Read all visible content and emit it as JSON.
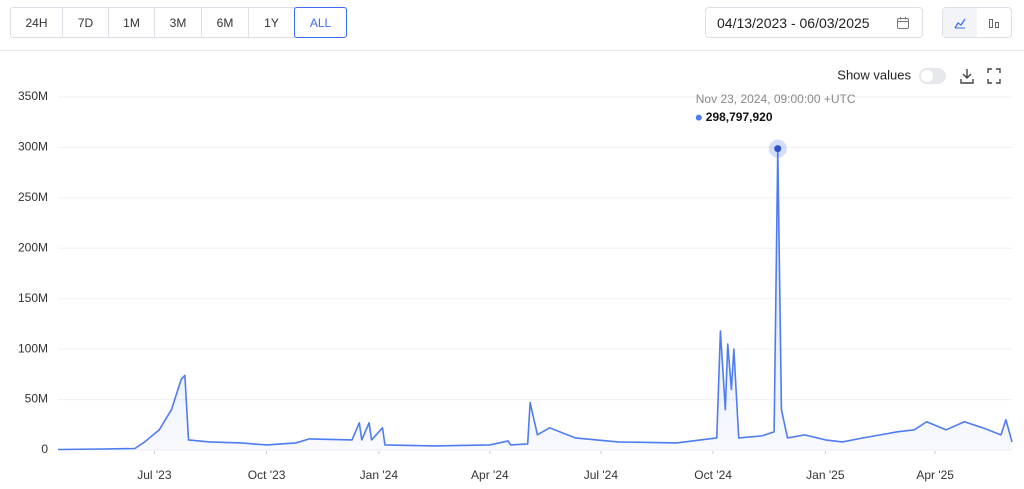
{
  "toolbar": {
    "ranges": [
      "24H",
      "7D",
      "1M",
      "3M",
      "6M",
      "1Y",
      "ALL"
    ],
    "selected": "ALL",
    "date_range": "04/13/2023 - 06/03/2025",
    "show_values": "Show values"
  },
  "chart_data": {
    "type": "line",
    "x": [
      "2023-04-13",
      "2023-05-20",
      "2023-06-15",
      "2023-06-23",
      "2023-07-05",
      "2023-07-15",
      "2023-07-23",
      "2023-07-26",
      "2023-07-29",
      "2023-08-15",
      "2023-09-10",
      "2023-10-01",
      "2023-10-25",
      "2023-11-05",
      "2023-12-10",
      "2023-12-16",
      "2023-12-18",
      "2023-12-24",
      "2023-12-26",
      "2024-01-04",
      "2024-01-06",
      "2024-02-15",
      "2024-04-01",
      "2024-04-16",
      "2024-04-18",
      "2024-05-02",
      "2024-05-04",
      "2024-05-10",
      "2024-05-20",
      "2024-06-10",
      "2024-07-15",
      "2024-09-01",
      "2024-10-04",
      "2024-10-07",
      "2024-10-11",
      "2024-10-13",
      "2024-10-16",
      "2024-10-18",
      "2024-10-22",
      "2024-11-10",
      "2024-11-20",
      "2024-11-23",
      "2024-11-26",
      "2024-12-01",
      "2024-12-15",
      "2025-01-01",
      "2025-01-15",
      "2025-02-01",
      "2025-02-15",
      "2025-03-01",
      "2025-03-15",
      "2025-03-25",
      "2025-04-10",
      "2025-04-25",
      "2025-05-10",
      "2025-05-25",
      "2025-05-29",
      "2025-06-03"
    ],
    "series": [
      {
        "color": "#4f7cf0",
        "values": [
          500000,
          1000000,
          1500000,
          8000000,
          20000000,
          40000000,
          70000000,
          74000000,
          10000000,
          8000000,
          7000000,
          5000000,
          7000000,
          11000000,
          10000000,
          27000000,
          10000000,
          27000000,
          10000000,
          22000000,
          5000000,
          4000000,
          5000000,
          9000000,
          5000000,
          6000000,
          47000000,
          15000000,
          22000000,
          12000000,
          8000000,
          7000000,
          12000000,
          118000000,
          40000000,
          105000000,
          60000000,
          100000000,
          12000000,
          14000000,
          18000000,
          298797920,
          40000000,
          12000000,
          15000000,
          10000000,
          8000000,
          12000000,
          15000000,
          18000000,
          20000000,
          28000000,
          20000000,
          28000000,
          22000000,
          15000000,
          30000000,
          8000000
        ],
        "value_labels": [
          null,
          null,
          null,
          null,
          null,
          null,
          null,
          null,
          null,
          null,
          null,
          null,
          null,
          null,
          null,
          null,
          null,
          null,
          null,
          null,
          null,
          null,
          null,
          null,
          null,
          null,
          null,
          null,
          null,
          null,
          null,
          null,
          null,
          null,
          null,
          null,
          null,
          null,
          null,
          null,
          null,
          "298,797,920",
          null,
          null,
          null,
          null,
          null,
          null,
          null,
          null,
          null,
          null,
          null,
          null,
          null,
          null,
          null,
          null
        ]
      }
    ],
    "annotation": "Nov 23, 2024, 09:00:00 +UTC",
    "xlim": [
      "2023-04-13",
      "2025-06-03"
    ],
    "xticks": [
      {
        "value": "2023-07-01",
        "label": "Jul '23"
      },
      {
        "value": "2023-10-01",
        "label": "Oct '23"
      },
      {
        "value": "2024-01-01",
        "label": "Jan '24"
      },
      {
        "value": "2024-04-01",
        "label": "Apr '24"
      },
      {
        "value": "2024-07-01",
        "label": "Jul '24"
      },
      {
        "value": "2024-10-01",
        "label": "Oct '24"
      },
      {
        "value": "2025-01-01",
        "label": "Jan '25"
      },
      {
        "value": "2025-04-01",
        "label": "Apr '25"
      }
    ],
    "ylim": [
      0,
      350000000
    ],
    "yticks": [
      0,
      {
        "value": 50000000,
        "label": "50M"
      },
      {
        "value": 100000000,
        "label": "100M"
      },
      {
        "value": 150000000,
        "label": "150M"
      },
      {
        "value": 200000000,
        "label": "200M"
      },
      {
        "value": 250000000,
        "label": "250M"
      },
      {
        "value": 300000000,
        "label": "300M"
      },
      {
        "value": 350000000,
        "label": "350M"
      }
    ],
    "grid": true
  }
}
